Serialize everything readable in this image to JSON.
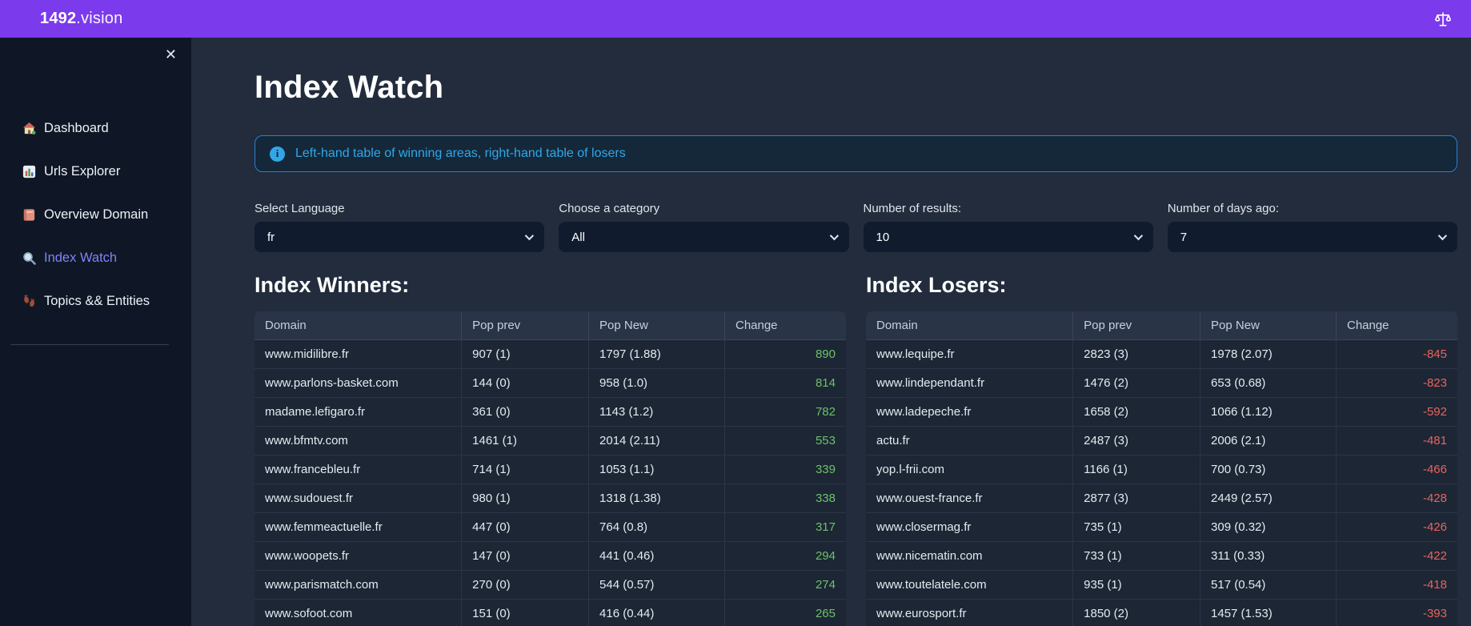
{
  "header": {
    "brand_bold": "1492",
    "brand_rest": ".vision",
    "scale_icon": "balance-scale-icon"
  },
  "sidebar": {
    "close_label": "✕",
    "items": [
      {
        "icon": "home-icon",
        "label": "Dashboard",
        "active": false
      },
      {
        "icon": "bar-chart-icon",
        "label": "Urls Explorer",
        "active": false
      },
      {
        "icon": "notebook-icon",
        "label": "Overview Domain",
        "active": false
      },
      {
        "icon": "magnifier-icon",
        "label": "Index Watch",
        "active": true
      },
      {
        "icon": "footprints-icon",
        "label": "Topics && Entities",
        "active": false
      }
    ]
  },
  "main": {
    "title": "Index Watch",
    "info_banner": "Left-hand table of winning areas, right-hand table of losers",
    "filters": [
      {
        "label": "Select Language",
        "value": "fr"
      },
      {
        "label": "Choose a category",
        "value": "All"
      },
      {
        "label": "Number of results:",
        "value": "10"
      },
      {
        "label": "Number of days ago:",
        "value": "7"
      }
    ],
    "winners": {
      "heading": "Index Winners:",
      "columns": [
        "Domain",
        "Pop prev",
        "Pop New",
        "Change"
      ],
      "rows": [
        [
          "www.midilibre.fr",
          "907 (1)",
          "1797 (1.88)",
          "890"
        ],
        [
          "www.parlons-basket.com",
          "144 (0)",
          "958 (1.0)",
          "814"
        ],
        [
          "madame.lefigaro.fr",
          "361 (0)",
          "1143 (1.2)",
          "782"
        ],
        [
          "www.bfmtv.com",
          "1461 (1)",
          "2014 (2.11)",
          "553"
        ],
        [
          "www.francebleu.fr",
          "714 (1)",
          "1053 (1.1)",
          "339"
        ],
        [
          "www.sudouest.fr",
          "980 (1)",
          "1318 (1.38)",
          "338"
        ],
        [
          "www.femmeactuelle.fr",
          "447 (0)",
          "764 (0.8)",
          "317"
        ],
        [
          "www.woopets.fr",
          "147 (0)",
          "441 (0.46)",
          "294"
        ],
        [
          "www.parismatch.com",
          "270 (0)",
          "544 (0.57)",
          "274"
        ],
        [
          "www.sofoot.com",
          "151 (0)",
          "416 (0.44)",
          "265"
        ]
      ]
    },
    "losers": {
      "heading": "Index Losers:",
      "columns": [
        "Domain",
        "Pop prev",
        "Pop New",
        "Change"
      ],
      "rows": [
        [
          "www.lequipe.fr",
          "2823 (3)",
          "1978 (2.07)",
          "-845"
        ],
        [
          "www.lindependant.fr",
          "1476 (2)",
          "653 (0.68)",
          "-823"
        ],
        [
          "www.ladepeche.fr",
          "1658 (2)",
          "1066 (1.12)",
          "-592"
        ],
        [
          "actu.fr",
          "2487 (3)",
          "2006 (2.1)",
          "-481"
        ],
        [
          "yop.l-frii.com",
          "1166 (1)",
          "700 (0.73)",
          "-466"
        ],
        [
          "www.ouest-france.fr",
          "2877 (3)",
          "2449 (2.57)",
          "-428"
        ],
        [
          "www.closermag.fr",
          "735 (1)",
          "309 (0.32)",
          "-426"
        ],
        [
          "www.nicematin.com",
          "733 (1)",
          "311 (0.33)",
          "-422"
        ],
        [
          "www.toutelatele.com",
          "935 (1)",
          "517 (0.54)",
          "-418"
        ],
        [
          "www.eurosport.fr",
          "1850 (2)",
          "1457 (1.53)",
          "-393"
        ]
      ]
    }
  },
  "colors": {
    "header_purple": "#7c3aed",
    "sidebar_bg": "#0f1726",
    "page_bg": "#222c3c",
    "active_item": "#8183f4",
    "info_blue": "#31a7e8",
    "positive_green": "#6ec16a",
    "negative_red": "#e8645f"
  }
}
